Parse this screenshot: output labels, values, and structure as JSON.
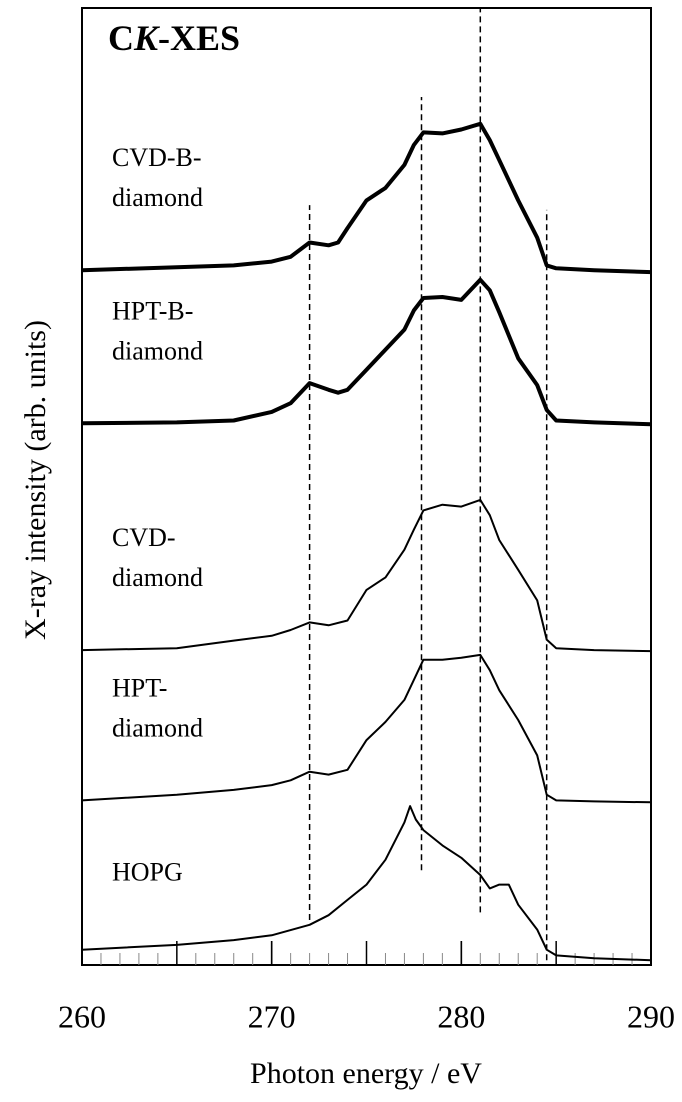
{
  "chart_data": {
    "type": "line",
    "title_parts": [
      "C",
      "K",
      "-XES"
    ],
    "xlabel": "Photon energy / eV",
    "ylabel": "X-ray intensity (arb. units)",
    "xlim": [
      260,
      290
    ],
    "ylim": [
      0,
      100
    ],
    "xticks": [
      260,
      270,
      280,
      290
    ],
    "xminor_step": 1,
    "xmajor_step": 5,
    "color": "#000000",
    "vlines": [
      {
        "x": 272,
        "y": [
          4.7,
          79.4
        ]
      },
      {
        "x": 277.9,
        "y": [
          9.9,
          90.7
        ]
      },
      {
        "x": 281,
        "y": [
          5.5,
          100
        ]
      },
      {
        "x": 284.5,
        "y": [
          0.5,
          78.9
        ]
      }
    ],
    "series": [
      {
        "label_lines": [
          "CVD-B-",
          "diamond"
        ],
        "linewidth": 4,
        "x": [
          260,
          265,
          268,
          270,
          271,
          272,
          273,
          273.5,
          274,
          275,
          276,
          277,
          277.5,
          278,
          279,
          280,
          281,
          281.5,
          282,
          283,
          284,
          284.5,
          285,
          287,
          290
        ],
        "values": [
          72.6,
          72.9,
          73.1,
          73.5,
          74.0,
          75.5,
          75.2,
          75.5,
          77.0,
          79.9,
          81.2,
          83.6,
          85.7,
          87.0,
          86.9,
          87.3,
          87.9,
          86.2,
          84.1,
          79.9,
          76.0,
          73.1,
          72.8,
          72.6,
          72.4
        ]
      },
      {
        "label_lines": [
          "HPT-B-",
          "diamond"
        ],
        "linewidth": 4,
        "x": [
          260,
          265,
          268,
          270,
          271,
          272,
          273,
          273.5,
          274,
          275,
          276,
          277,
          277.5,
          278,
          279,
          280,
          281,
          281.5,
          282,
          283,
          284,
          284.5,
          285,
          287,
          290
        ],
        "values": [
          56.6,
          56.7,
          56.9,
          57.8,
          58.7,
          60.8,
          60.1,
          59.8,
          60.1,
          62.2,
          64.3,
          66.4,
          68.4,
          69.7,
          69.8,
          69.5,
          71.6,
          70.5,
          68.2,
          63.4,
          60.6,
          58.0,
          56.9,
          56.7,
          56.5
        ]
      },
      {
        "label_lines": [
          "CVD-",
          "diamond"
        ],
        "linewidth": 2,
        "x": [
          260,
          265,
          268,
          270,
          271,
          272,
          273,
          274,
          275,
          276,
          277,
          277.5,
          278,
          279,
          280,
          281,
          281.5,
          282,
          283,
          284,
          284.5,
          285,
          287,
          290
        ],
        "values": [
          32.9,
          33.1,
          33.9,
          34.4,
          35.0,
          35.8,
          35.5,
          36.0,
          39.2,
          40.5,
          43.4,
          45.5,
          47.5,
          48.1,
          47.9,
          48.6,
          47.0,
          44.4,
          41.3,
          38.1,
          34.0,
          33.1,
          32.9,
          32.8
        ]
      },
      {
        "label_lines": [
          "HPT-",
          "diamond"
        ],
        "linewidth": 2,
        "x": [
          260,
          265,
          268,
          270,
          271,
          272,
          273,
          274,
          275,
          276,
          277,
          277.5,
          278,
          279,
          280,
          281,
          281.5,
          282,
          283,
          284,
          284.5,
          285,
          287,
          290
        ],
        "values": [
          17.2,
          17.8,
          18.3,
          18.8,
          19.3,
          20.2,
          19.9,
          20.4,
          23.5,
          25.4,
          27.7,
          29.8,
          31.9,
          31.9,
          32.1,
          32.4,
          30.8,
          28.7,
          25.6,
          21.9,
          17.8,
          17.2,
          17.1,
          17.0
        ]
      },
      {
        "label_lines": [
          "HOPG"
        ],
        "linewidth": 2,
        "x": [
          260,
          265,
          268,
          270,
          272,
          273,
          274,
          275,
          276,
          277,
          277.3,
          277.6,
          278,
          279,
          280,
          281,
          281.5,
          282,
          282.5,
          283,
          284,
          284.5,
          285,
          287,
          290
        ],
        "values": [
          1.6,
          2.1,
          2.6,
          3.1,
          4.2,
          5.2,
          6.8,
          8.4,
          11.0,
          14.9,
          16.6,
          15.2,
          14.1,
          12.5,
          11.2,
          9.4,
          8.0,
          8.4,
          8.4,
          6.3,
          3.7,
          1.6,
          1.0,
          0.7,
          0.5
        ]
      }
    ]
  }
}
